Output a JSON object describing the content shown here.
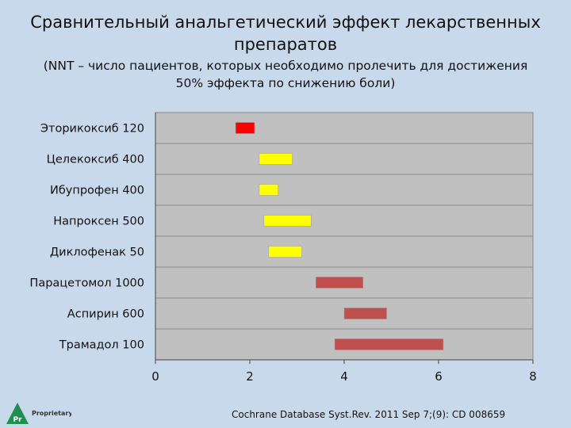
{
  "title": "Сравнительный анальгетический эффект лекарственных препаратов",
  "subtitle": "(NNT – число пациентов, которых необходимо пролечить для достижения 50% эффекта по снижению боли)",
  "source": "Cochrane Database Syst.Rev. 2011 Sep 7;(9): CD 008659",
  "logo": {
    "mark": "Pr",
    "text": "Proprietary"
  },
  "colors": {
    "plot_bg": "#c0c0c0",
    "red": "#ff0000",
    "yellow": "#ffff00",
    "dark_red": "#c0504d",
    "page_bg": "#c9d9ec"
  },
  "chart_data": {
    "type": "bar",
    "orientation": "horizontal-floating",
    "categories": [
      "Эторикоксиб 120",
      "Целекоксиб 400",
      "Ибупрофен 400",
      "Напроксен 500",
      "Диклофенак 50",
      "Парацетомол 1000",
      "Аспирин 600",
      "Трамадол 100"
    ],
    "ranges": [
      [
        1.7,
        2.1
      ],
      [
        2.2,
        2.9
      ],
      [
        2.2,
        2.6
      ],
      [
        2.3,
        3.3
      ],
      [
        2.4,
        3.1
      ],
      [
        3.4,
        4.4
      ],
      [
        4.0,
        4.9
      ],
      [
        3.8,
        6.1
      ]
    ],
    "bar_colors": [
      "#ff0000",
      "#ffff00",
      "#ffff00",
      "#ffff00",
      "#ffff00",
      "#c0504d",
      "#c0504d",
      "#c0504d"
    ],
    "xlim": [
      0,
      8
    ],
    "xticks": [
      "0",
      "2",
      "4",
      "6",
      "8"
    ],
    "grid": "horizontal"
  }
}
